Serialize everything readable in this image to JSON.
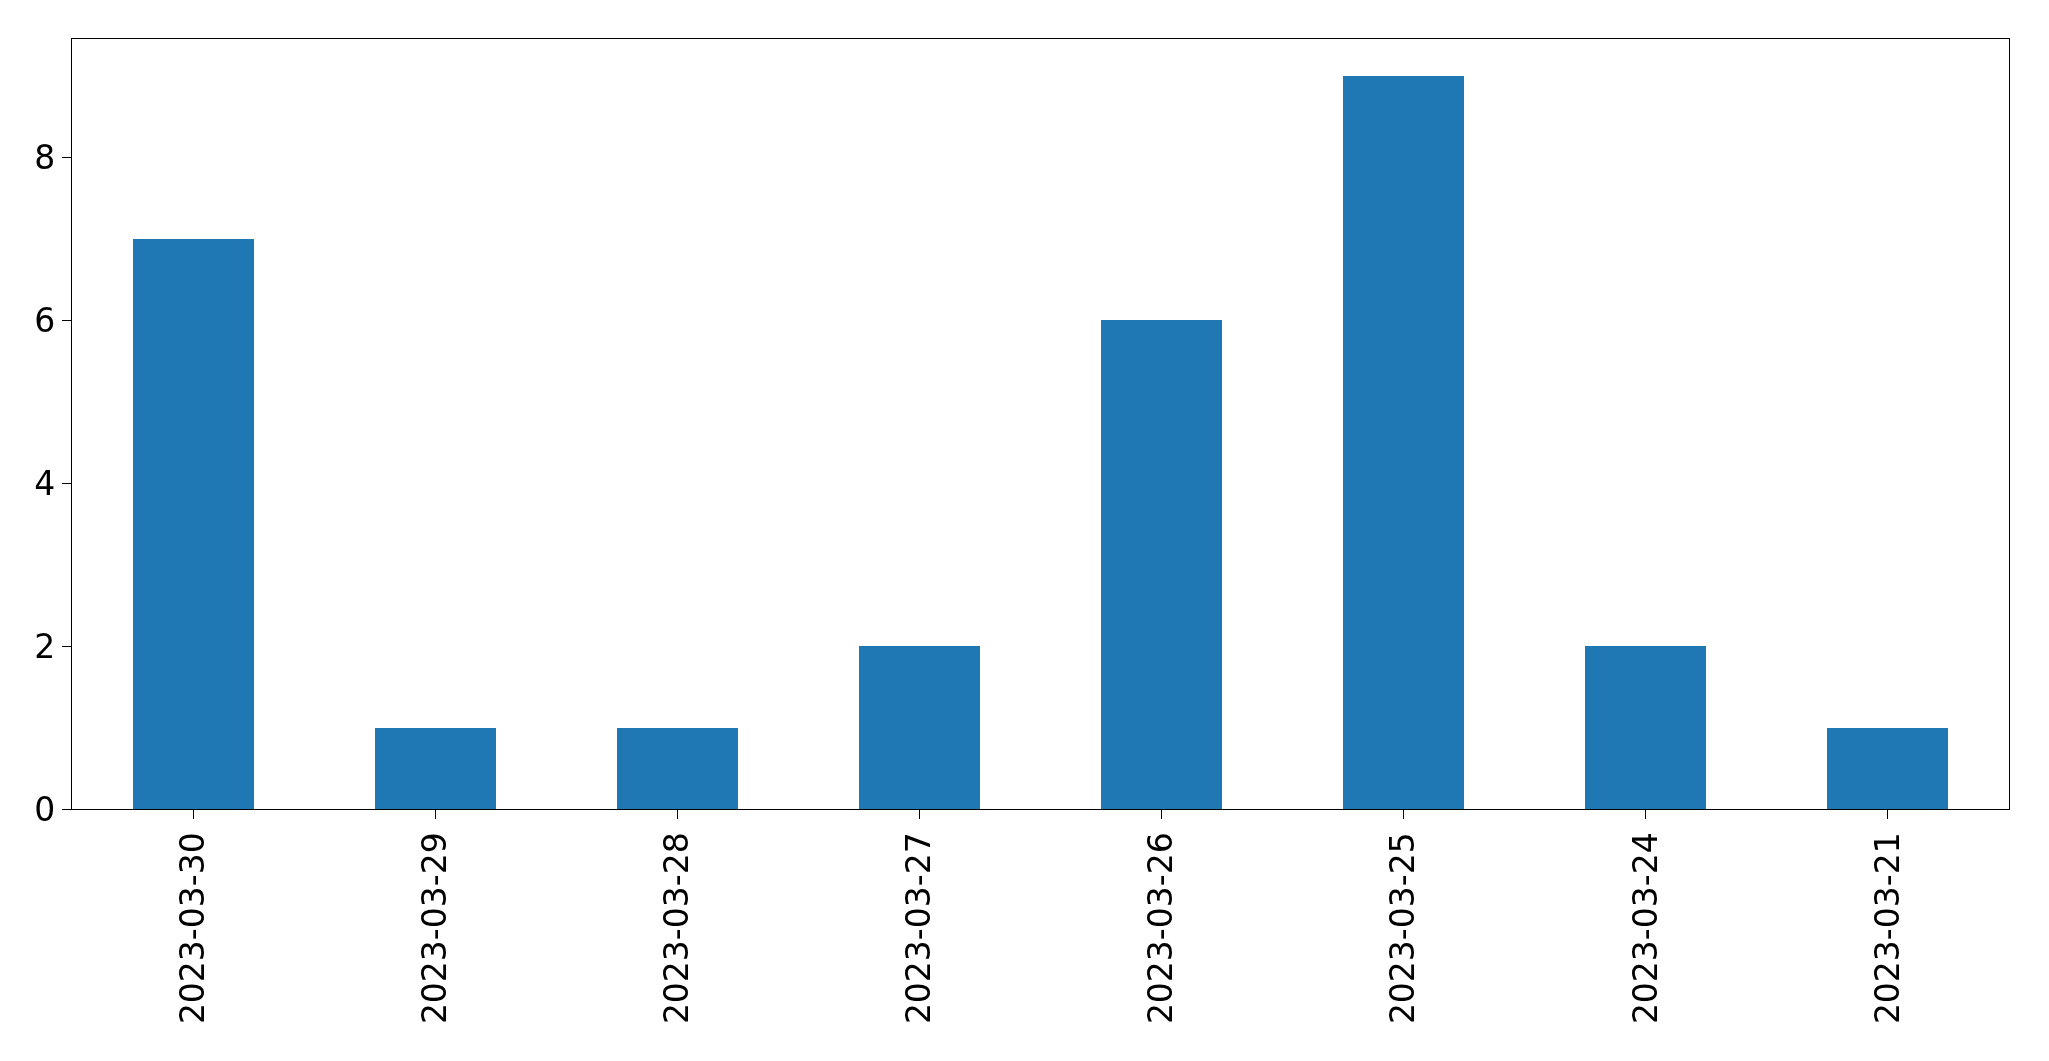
{
  "chart_data": {
    "type": "bar",
    "categories": [
      "2023-03-30",
      "2023-03-29",
      "2023-03-28",
      "2023-03-27",
      "2023-03-26",
      "2023-03-25",
      "2023-03-24",
      "2023-03-21"
    ],
    "values": [
      7,
      1,
      1,
      2,
      6,
      9,
      2,
      1
    ],
    "color": "#1f77b4",
    "ylim": [
      0,
      9.45
    ],
    "yticks": [
      0,
      2,
      4,
      6,
      8
    ],
    "grid": false
  }
}
